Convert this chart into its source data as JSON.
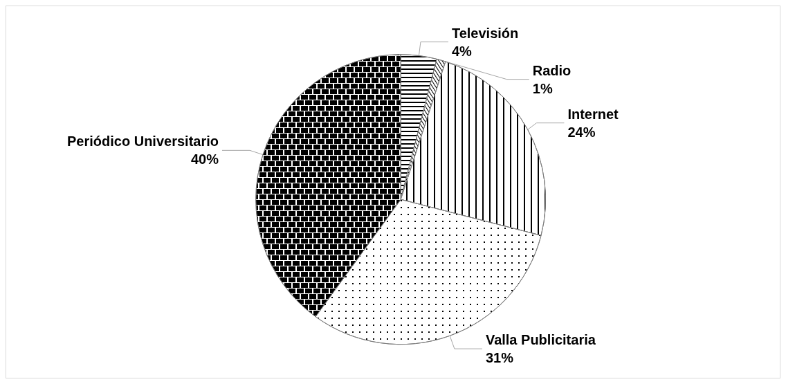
{
  "chart_data": {
    "type": "pie",
    "categories": [
      "Televisión",
      "Radio",
      "Internet",
      "Valla Publicitaria",
      "Periódico Universitario"
    ],
    "values": [
      4,
      1,
      24,
      31,
      40
    ],
    "value_labels": [
      "4%",
      "1%",
      "24%",
      "31%",
      "40%"
    ],
    "colors": [
      "#ffffff",
      "#ffffff",
      "#ffffff",
      "#ffffff",
      "#ffffff"
    ],
    "legend": false
  }
}
